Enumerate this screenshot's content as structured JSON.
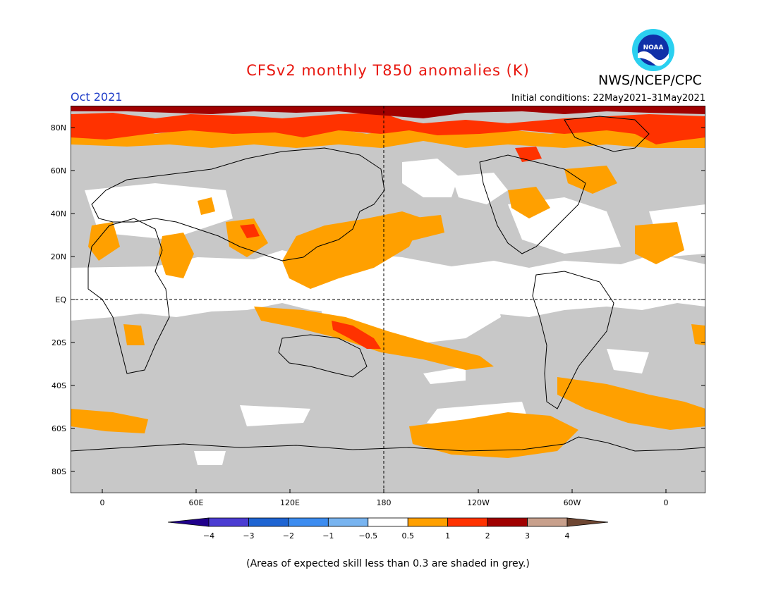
{
  "title": "CFSv2 monthly T850 anomalies (K)",
  "agency": "NWS/NCEP/CPC",
  "logo_text": "NOAA",
  "valid_month": "Oct 2021",
  "initial_conditions": "Initial conditions: 22May2021–31May2021",
  "footnote": "(Areas of expected skill less than 0.3 are shaded in grey.)",
  "lat_labels": [
    "80N",
    "60N",
    "40N",
    "20N",
    "EQ",
    "20S",
    "40S",
    "60S",
    "80S"
  ],
  "lon_labels": [
    "0",
    "60E",
    "120E",
    "180",
    "120W",
    "60W",
    "0"
  ],
  "colorbar": {
    "labels": [
      "−4",
      "−3",
      "−2",
      "−1",
      "−0.5",
      "0.5",
      "1",
      "2",
      "3",
      "4"
    ],
    "colors": [
      "#20008c",
      "#4b3cd2",
      "#1e64d2",
      "#3c8cf0",
      "#78b4f0",
      "#ffffff",
      "#ffa000",
      "#ff3200",
      "#a00000",
      "#c8a08c",
      "#6e4632"
    ]
  },
  "colors": {
    "skill_mask_grey": "#c8c8c8",
    "neutral": "#ffffff",
    "title_red": "#e8170f",
    "month_blue": "#1e3cc8"
  }
}
